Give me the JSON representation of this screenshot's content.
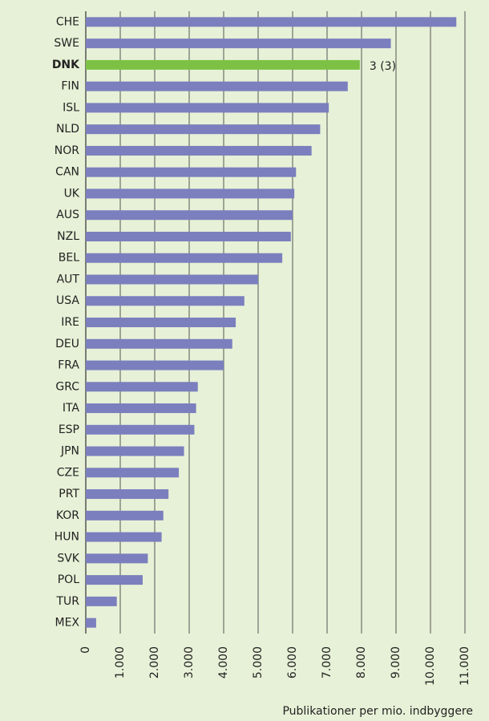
{
  "chart_data": {
    "type": "bar",
    "orientation": "horizontal",
    "categories": [
      "CHE",
      "SWE",
      "DNK",
      "FIN",
      "ISL",
      "NLD",
      "NOR",
      "CAN",
      "UK",
      "AUS",
      "NZL",
      "BEL",
      "AUT",
      "USA",
      "IRE",
      "DEU",
      "FRA",
      "GRC",
      "ITA",
      "ESP",
      "JPN",
      "CZE",
      "PRT",
      "KOR",
      "HUN",
      "SVK",
      "POL",
      "TUR",
      "MEX"
    ],
    "values": [
      10750,
      8850,
      7950,
      7600,
      7050,
      6800,
      6550,
      6100,
      6050,
      6000,
      5950,
      5700,
      5000,
      4600,
      4350,
      4250,
      4000,
      3250,
      3200,
      3150,
      2850,
      2700,
      2400,
      2250,
      2200,
      1800,
      1650,
      900,
      300
    ],
    "color": "#7b7fbe",
    "highlight": "DNK",
    "highlight_color": "#7cc144",
    "annotation": {
      "text": "3 (3)",
      "category": "DNK"
    },
    "xlabel": "Publikationer per mio. indbyggere",
    "xlim": [
      0,
      11000
    ],
    "xticks": [
      0,
      {
        "value": 1000,
        "label": "1.000"
      },
      {
        "value": 2000,
        "label": "2.000"
      },
      {
        "value": 3000,
        "label": "3.000"
      },
      {
        "value": 4000,
        "label": "4.000"
      },
      {
        "value": 5000,
        "label": "5.000"
      },
      {
        "value": 6000,
        "label": "6.000"
      },
      {
        "value": 7000,
        "label": "7.000"
      },
      {
        "value": 8000,
        "label": "8.000"
      },
      {
        "value": 9000,
        "label": "9.000"
      },
      {
        "value": 10000,
        "label": "10.000"
      },
      {
        "value": 11000,
        "label": "11.000"
      }
    ],
    "grid": true
  }
}
